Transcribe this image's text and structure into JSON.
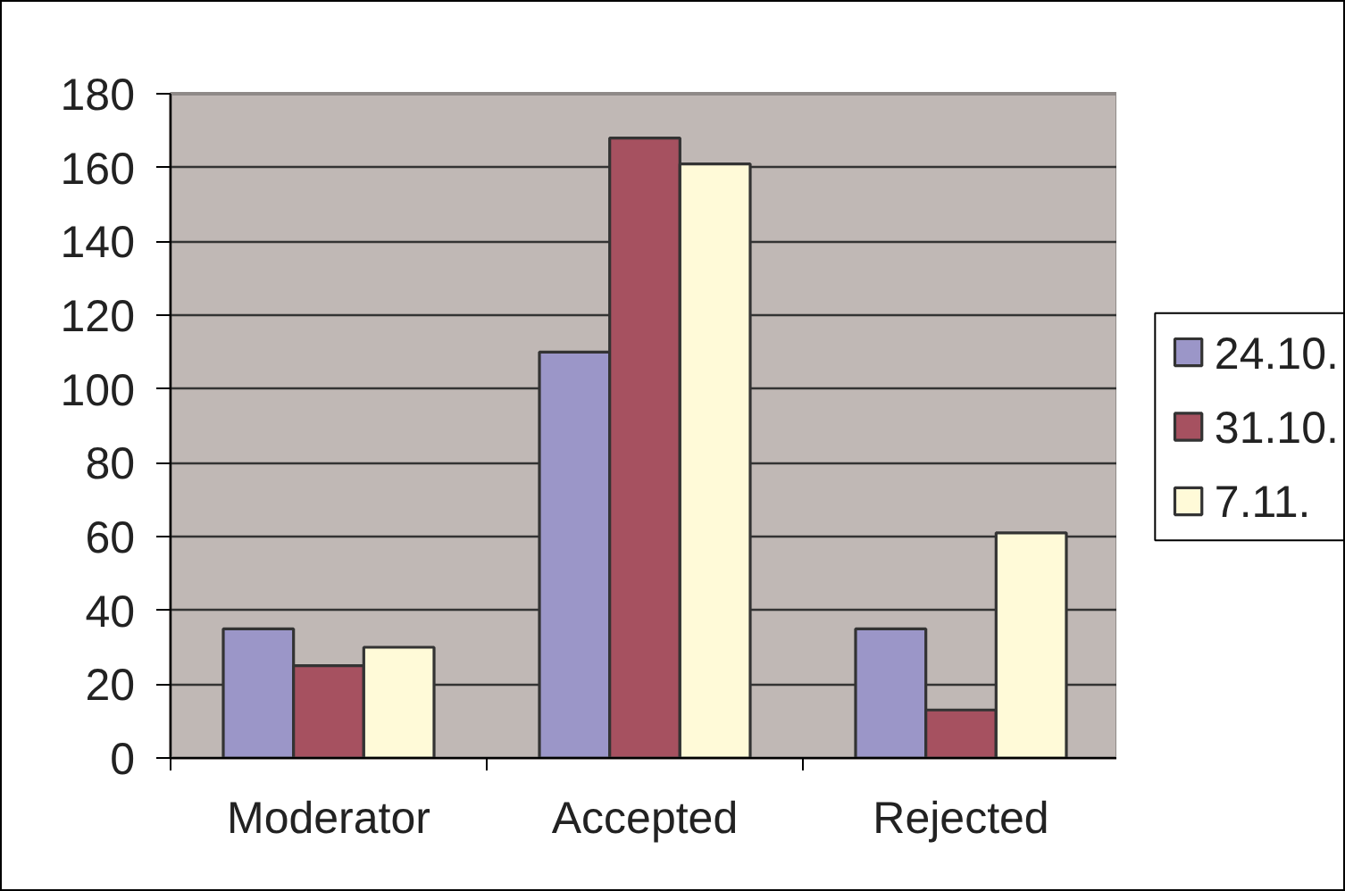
{
  "chart_data": {
    "type": "bar",
    "categories": [
      "Moderator",
      "Accepted",
      "Rejected"
    ],
    "series": [
      {
        "name": "24.10.",
        "color": "#9b96c8",
        "values": [
          35,
          110,
          35
        ]
      },
      {
        "name": "31.10.",
        "color": "#a65160",
        "values": [
          25,
          168,
          13
        ]
      },
      {
        "name": "7.11.",
        "color": "#fffad8",
        "values": [
          30,
          161,
          61
        ]
      }
    ],
    "ylim": [
      0,
      180
    ],
    "yticks": [
      0,
      20,
      40,
      60,
      80,
      100,
      120,
      140,
      160,
      180
    ],
    "grid": "y",
    "legend": "right"
  }
}
